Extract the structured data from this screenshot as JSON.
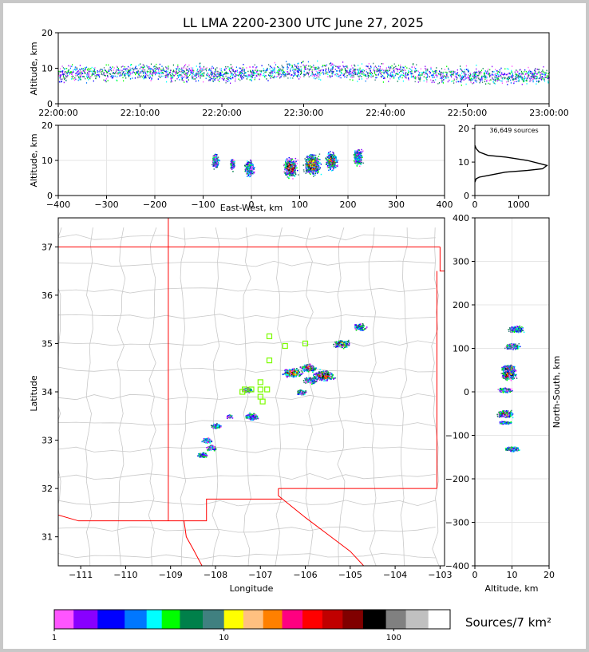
{
  "title": "LL LMA 2200-2300 UTC June 27, 2025",
  "time_height": {
    "ylabel": "Altitude, km",
    "ylim": [
      0,
      20
    ],
    "yticks": [
      "0",
      "10",
      "20"
    ],
    "xticks": [
      "22:00:00",
      "22:10:00",
      "22:20:00",
      "22:30:00",
      "22:40:00",
      "22:50:00",
      "23:00:00"
    ]
  },
  "ew_alt": {
    "ylabel": "Altitude, km",
    "xlabel": "East-West, km",
    "xlim": [
      -400,
      400
    ],
    "ylim": [
      0,
      20
    ],
    "xticks": [
      "−400",
      "−300",
      "−200",
      "−100",
      "0",
      "100",
      "200",
      "300",
      "400"
    ],
    "yticks": [
      "0",
      "10",
      "20"
    ]
  },
  "histogram": {
    "annotation": "36,649 sources",
    "xticks": [
      "0",
      "1000"
    ],
    "yticks": [
      "0",
      "10",
      "20"
    ]
  },
  "plan_view": {
    "xlabel": "Longitude",
    "ylabel": "Latitude",
    "xticks": [
      "−111",
      "−110",
      "−109",
      "−108",
      "−107",
      "−106",
      "−105",
      "−104",
      "−103"
    ],
    "yticks": [
      "31",
      "32",
      "33",
      "34",
      "35",
      "36",
      "37"
    ],
    "state_border_color": "#ff0000",
    "county_color": "#c8c8c8",
    "station_color": "#7cfc00"
  },
  "ns_alt": {
    "ylabel": "North-South, km",
    "xlabel": "Altitude, km",
    "xticks": [
      "0",
      "10",
      "20"
    ],
    "yticks": [
      "−400",
      "−300",
      "−200",
      "−100",
      "0",
      "100",
      "200",
      "300",
      "400"
    ]
  },
  "colorbar": {
    "label": "Sources/7 km²",
    "ticks": [
      "1",
      "10",
      "100"
    ],
    "colors": [
      "#ff55ff",
      "#8800ff",
      "#0000ff",
      "#0077ff",
      "#00ffff",
      "#00ff00",
      "#00804a",
      "#408080",
      "#ffff00",
      "#ffc080",
      "#ff8000",
      "#ff0080",
      "#ff0000",
      "#c00000",
      "#800000",
      "#000000",
      "#808080",
      "#c0c0c0",
      "#ffffff"
    ]
  },
  "chart_data": [
    {
      "type": "scatter",
      "title": "LL LMA 2200-2300 UTC June 27, 2025",
      "xlabel": "",
      "ylabel": "Altitude, km",
      "x_range": [
        "22:00:00",
        "23:00:00"
      ],
      "ylim": [
        0,
        20
      ],
      "description_series": [
        {
          "time_min": [
            0,
            10,
            20,
            30,
            40,
            50,
            60
          ],
          "alt_core_km": [
            8.5,
            9.0,
            8.5,
            9.5,
            9.0,
            8.0,
            8.0
          ]
        }
      ]
    },
    {
      "type": "heatmap",
      "xlabel": "East-West, km",
      "ylabel": "Altitude, km",
      "xlim": [
        -400,
        400
      ],
      "ylim": [
        0,
        20
      ],
      "clusters": [
        {
          "x": -75,
          "alt": 10,
          "intensity": 1
        },
        {
          "x": -40,
          "alt": 9,
          "intensity": 0
        },
        {
          "x": -5,
          "alt": 8,
          "intensity": 2
        },
        {
          "x": 80,
          "alt": 8,
          "intensity": 4
        },
        {
          "x": 125,
          "alt": 9,
          "intensity": 5
        },
        {
          "x": 165,
          "alt": 10,
          "intensity": 3
        },
        {
          "x": 220,
          "alt": 11,
          "intensity": 2
        }
      ]
    },
    {
      "type": "line",
      "xlabel": "",
      "ylabel": "",
      "annotation": "36,649 sources",
      "x": [
        0,
        30,
        100,
        300,
        700,
        1200,
        1550,
        1650,
        1500,
        1200,
        700,
        300,
        100,
        30,
        0
      ],
      "y": [
        4,
        5,
        5.5,
        6,
        7,
        7.5,
        8,
        9,
        9.5,
        10.5,
        11.5,
        12,
        13,
        14,
        15
      ],
      "xlim": [
        0,
        1700
      ],
      "ylim": [
        0,
        21
      ]
    },
    {
      "type": "heatmap",
      "xlabel": "Longitude",
      "ylabel": "Latitude",
      "xlim": [
        -111.5,
        -102.9
      ],
      "ylim": [
        30.4,
        37.6
      ],
      "clusters": [
        {
          "lon": -104.8,
          "lat": 35.35,
          "intensity": 2
        },
        {
          "lon": -105.2,
          "lat": 35.0,
          "intensity": 3
        },
        {
          "lon": -105.6,
          "lat": 34.35,
          "intensity": 5
        },
        {
          "lon": -105.95,
          "lat": 34.5,
          "intensity": 3
        },
        {
          "lon": -106.3,
          "lat": 34.4,
          "intensity": 4
        },
        {
          "lon": -105.9,
          "lat": 34.25,
          "intensity": 2
        },
        {
          "lon": -106.1,
          "lat": 34.0,
          "intensity": 1
        },
        {
          "lon": -107.3,
          "lat": 34.05,
          "intensity": 1
        },
        {
          "lon": -107.2,
          "lat": 33.5,
          "intensity": 2
        },
        {
          "lon": -107.7,
          "lat": 33.5,
          "intensity": 0
        },
        {
          "lon": -108.0,
          "lat": 33.3,
          "intensity": 1
        },
        {
          "lon": -108.1,
          "lat": 32.85,
          "intensity": 1
        },
        {
          "lon": -108.2,
          "lat": 33.0,
          "intensity": 1
        },
        {
          "lon": -108.3,
          "lat": 32.7,
          "intensity": 1
        }
      ],
      "stations": [
        {
          "lon": -106.8,
          "lat": 35.15
        },
        {
          "lon": -106.45,
          "lat": 34.95
        },
        {
          "lon": -106.0,
          "lat": 35.0
        },
        {
          "lon": -106.8,
          "lat": 34.65
        },
        {
          "lon": -107.0,
          "lat": 34.2
        },
        {
          "lon": -107.0,
          "lat": 34.05
        },
        {
          "lon": -107.2,
          "lat": 34.05
        },
        {
          "lon": -107.4,
          "lat": 34.0
        },
        {
          "lon": -107.35,
          "lat": 34.05
        },
        {
          "lon": -107.0,
          "lat": 33.9
        },
        {
          "lon": -106.95,
          "lat": 33.8
        },
        {
          "lon": -106.85,
          "lat": 34.05
        }
      ]
    },
    {
      "type": "heatmap",
      "xlabel": "Altitude, km",
      "ylabel": "North-South, km",
      "xlim": [
        0,
        20
      ],
      "ylim": [
        -400,
        400
      ],
      "clusters": [
        {
          "alt": 11,
          "ns": 145,
          "intensity": 2
        },
        {
          "alt": 10,
          "ns": 105,
          "intensity": 2
        },
        {
          "alt": 9,
          "ns": 55,
          "intensity": 3
        },
        {
          "alt": 9,
          "ns": 40,
          "intensity": 5
        },
        {
          "alt": 8,
          "ns": 5,
          "intensity": 1
        },
        {
          "alt": 8,
          "ns": -50,
          "intensity": 3
        },
        {
          "alt": 8,
          "ns": -70,
          "intensity": 0
        },
        {
          "alt": 10,
          "ns": -130,
          "intensity": 1
        }
      ]
    }
  ]
}
